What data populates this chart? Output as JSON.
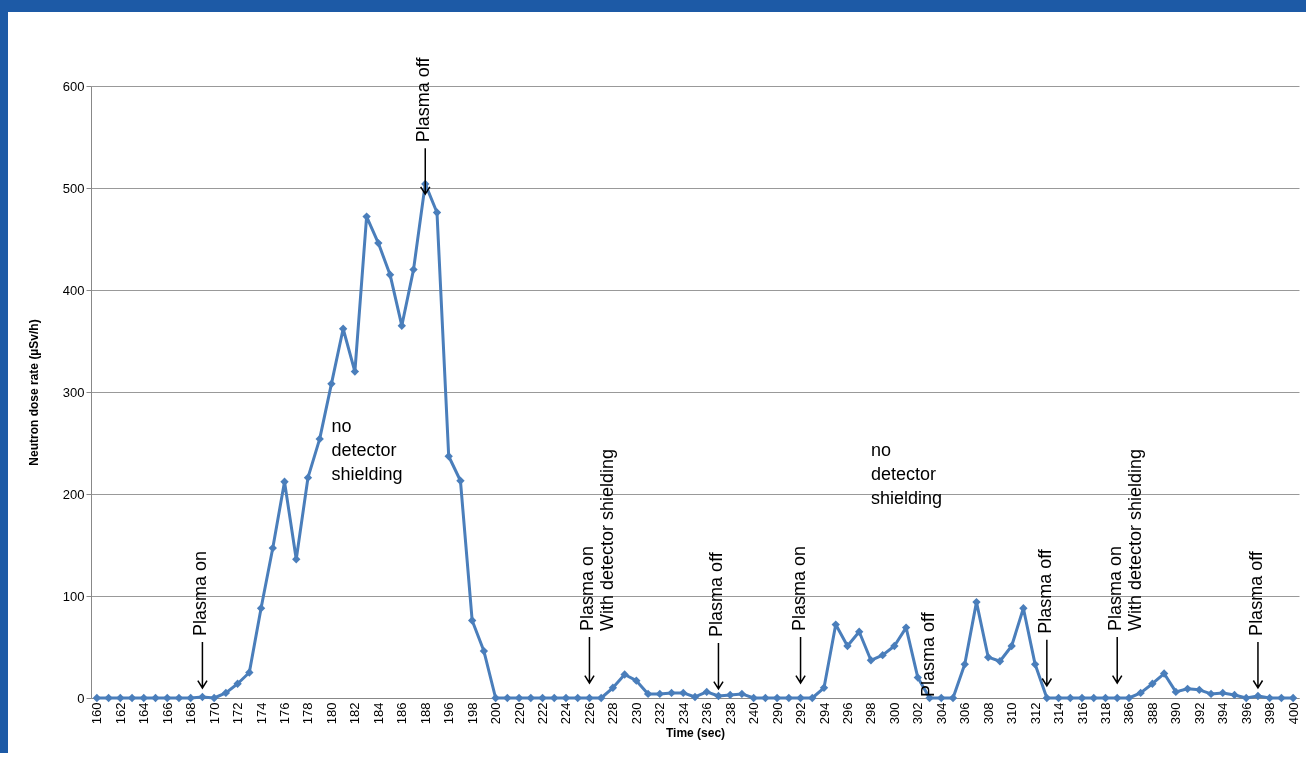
{
  "chart_data": {
    "type": "line",
    "xlabel": "Time (sec)",
    "ylabel": "Neutron dose rate (µSv/h)",
    "categories": [
      "160",
      null,
      "162",
      null,
      "164",
      null,
      "166",
      null,
      "168",
      null,
      "170",
      null,
      "172",
      null,
      "174",
      null,
      "176",
      null,
      "178",
      null,
      "180",
      null,
      "182",
      null,
      "184",
      null,
      "186",
      null,
      "188",
      null,
      "196",
      null,
      "198",
      null,
      "200",
      null,
      "220",
      null,
      "222",
      null,
      "224",
      null,
      "226",
      null,
      "228",
      null,
      "230",
      null,
      "232",
      null,
      "234",
      null,
      "236",
      null,
      "238",
      null,
      "240",
      null,
      "290",
      null,
      "292",
      null,
      "294",
      null,
      "296",
      null,
      "298",
      null,
      "300",
      null,
      "302",
      null,
      "304",
      null,
      "306",
      null,
      "308",
      null,
      "310",
      null,
      "312",
      null,
      "314",
      null,
      "316",
      null,
      "318",
      null,
      "386",
      null,
      "388",
      null,
      "390",
      null,
      "392",
      null,
      "394",
      null,
      "396",
      null,
      "398",
      null,
      "400"
    ],
    "series": [
      {
        "color": "#4a7ebb",
        "values": [
          0,
          0,
          0,
          0,
          0,
          0,
          0,
          0,
          0,
          1,
          0,
          5,
          14,
          25,
          88,
          147,
          212,
          136,
          216,
          254,
          308,
          362,
          320,
          472,
          446,
          415,
          365,
          420,
          504,
          476,
          237,
          213,
          76,
          46,
          0,
          0,
          0,
          0,
          0,
          0,
          0,
          0,
          0,
          0,
          10,
          23,
          17,
          4,
          4,
          5,
          5,
          1,
          6,
          2,
          3,
          4,
          0,
          0,
          0,
          0,
          0,
          0,
          10,
          72,
          51,
          65,
          37,
          42,
          51,
          69,
          20,
          0,
          0,
          0,
          33,
          94,
          40,
          36,
          51,
          88,
          33,
          0,
          0,
          0,
          0,
          0,
          0,
          0,
          0,
          5,
          14,
          24,
          6,
          9,
          8,
          4,
          5,
          3,
          0,
          2,
          0,
          0,
          0
        ]
      }
    ],
    "ylim": [
      0,
      600
    ],
    "yticks": [
      0,
      100,
      200,
      300,
      400,
      500,
      600
    ],
    "grid": "y",
    "marker": "diamond",
    "annotations": [
      "Plasma on",
      {
        "text": "Plasma off",
        "x": "188",
        "y": 490
      },
      "no detector shielding",
      "Plasma on\nWith detector shielding",
      {
        "text": "Plasma off",
        "y": 5
      },
      "Plasma on",
      "no detector shielding",
      "Plasma off",
      {
        "text": "Plasma off",
        "y": 8
      },
      "Plasma on\nWith detector shielding",
      {
        "text": "Plasma off",
        "y": 6
      }
    ]
  }
}
